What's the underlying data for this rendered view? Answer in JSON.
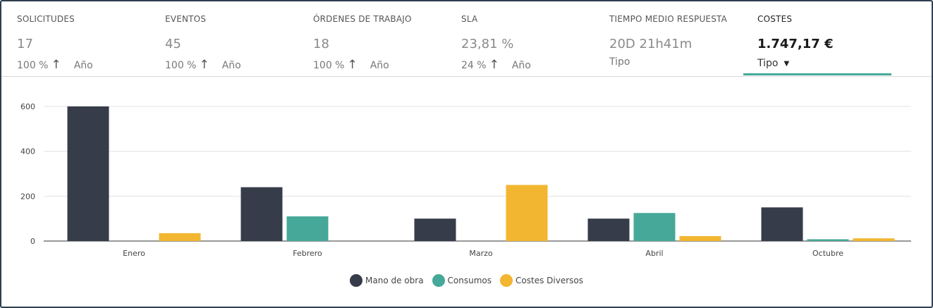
{
  "kpis": [
    {
      "title": "SOLICITUDES",
      "value": "17",
      "pct": "100 %",
      "period": "Año"
    },
    {
      "title": "EVENTOS",
      "value": "45",
      "pct": "100 %",
      "period": "Año"
    },
    {
      "title": "ÓRDENES DE TRABAJO",
      "value": "18",
      "pct": "100 %",
      "period": "Año"
    },
    {
      "title": "SLA",
      "value": "23,81 %",
      "pct": "24 %",
      "period": "Año"
    },
    {
      "title": "TIEMPO MEDIO RESPUESTA",
      "value": "20D 21h41m",
      "type_label": "Tipo"
    },
    {
      "title": "COSTES",
      "value": "1.747,17 €",
      "type_label": "Tipo"
    }
  ],
  "colors": {
    "accent": "#46a898",
    "series": [
      "#373c4a",
      "#46a898",
      "#f2b630"
    ]
  },
  "chart_data": {
    "type": "bar",
    "categories": [
      "Enero",
      "Febrero",
      "Marzo",
      "Abril",
      "Octubre"
    ],
    "series": [
      {
        "name": "Mano de obra",
        "values": [
          600,
          240,
          100,
          100,
          150
        ]
      },
      {
        "name": "Consumos",
        "values": [
          0,
          110,
          0,
          125,
          8
        ]
      },
      {
        "name": "Costes Diversos",
        "values": [
          35,
          0,
          250,
          22,
          12
        ]
      }
    ],
    "yticks": [
      0,
      200,
      400,
      600
    ],
    "ylim": [
      0,
      600
    ],
    "grid": true,
    "legend_position": "bottom-center"
  }
}
